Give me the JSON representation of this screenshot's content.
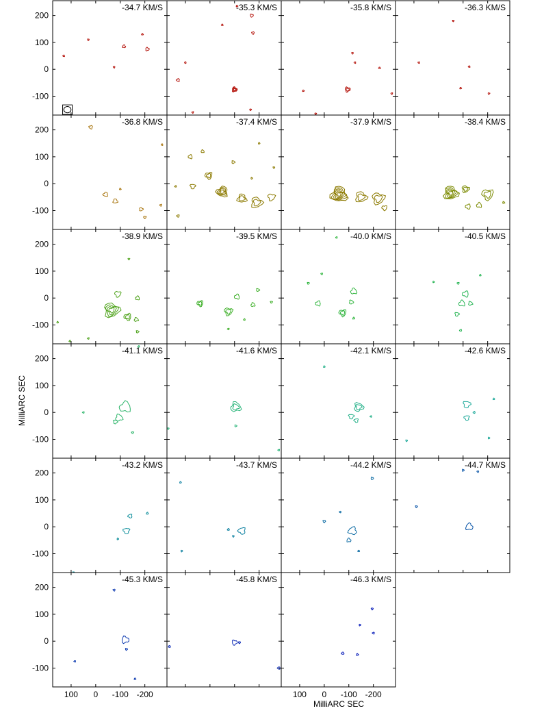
{
  "chart_data": {
    "type": "channel-map-contour",
    "xlabel": "MilliARC SEC",
    "ylabel": "MilliARC SEC",
    "xlim": [
      175,
      -290
    ],
    "ylim": [
      -170,
      255
    ],
    "x_ticks": [
      100,
      0,
      -100,
      -200
    ],
    "x_tick_labels": [
      "100",
      "0",
      "-100",
      "-200"
    ],
    "y_ticks": [
      200,
      100,
      0,
      -100
    ],
    "y_tick_labels": [
      "200",
      "100",
      "0",
      "-100"
    ],
    "layout": {
      "rows": 6,
      "cols": 4
    },
    "grid": false,
    "beam": {
      "x": 115,
      "y": -150,
      "major": 24,
      "minor": 20
    },
    "panels": [
      {
        "label": "-34.7 KM/S",
        "color": "#b5150d",
        "features": [
          {
            "x": -115,
            "y": 85,
            "r": 6,
            "n": 1
          },
          {
            "x": -210,
            "y": 75,
            "r": 7,
            "n": 1
          },
          {
            "x": 30,
            "y": 110,
            "r": 3,
            "n": 1
          },
          {
            "x": -75,
            "y": 8,
            "r": 3,
            "n": 1
          },
          {
            "x": 130,
            "y": 50,
            "r": 2,
            "n": 1
          },
          {
            "x": -190,
            "y": 130,
            "r": 2,
            "n": 1
          }
        ]
      },
      {
        "label": "-35.3 KM/S",
        "color": "#b5150d",
        "features": [
          {
            "x": -100,
            "y": -75,
            "r": 10,
            "n": 3
          },
          {
            "x": -170,
            "y": 200,
            "r": 6,
            "n": 1
          },
          {
            "x": -175,
            "y": 135,
            "r": 5,
            "n": 1
          },
          {
            "x": 130,
            "y": -40,
            "r": 6,
            "n": 1
          },
          {
            "x": -50,
            "y": 165,
            "r": 3,
            "n": 1
          },
          {
            "x": -110,
            "y": 235,
            "r": 3,
            "n": 1
          },
          {
            "x": -165,
            "y": -150,
            "r": 3,
            "n": 1
          },
          {
            "x": 70,
            "y": -160,
            "r": 3,
            "n": 1
          },
          {
            "x": 100,
            "y": 25,
            "r": 2,
            "n": 1
          }
        ]
      },
      {
        "label": "-35.8 KM/S",
        "color": "#b5150d",
        "features": [
          {
            "x": -95,
            "y": -75,
            "r": 10,
            "n": 2
          },
          {
            "x": -115,
            "y": 60,
            "r": 3,
            "n": 1
          },
          {
            "x": -125,
            "y": 25,
            "r": 3,
            "n": 1
          },
          {
            "x": -225,
            "y": 5,
            "r": 2,
            "n": 1
          },
          {
            "x": 85,
            "y": -80,
            "r": 2,
            "n": 1
          },
          {
            "x": 35,
            "y": -165,
            "r": 3,
            "n": 1
          },
          {
            "x": -275,
            "y": -90,
            "r": 2,
            "n": 1
          }
        ]
      },
      {
        "label": "-36.3 KM/S",
        "color": "#b5150d",
        "features": [
          {
            "x": -60,
            "y": 180,
            "r": 3,
            "n": 1
          },
          {
            "x": 80,
            "y": 25,
            "r": 2,
            "n": 1
          },
          {
            "x": -125,
            "y": 10,
            "r": 2,
            "n": 1
          },
          {
            "x": -90,
            "y": -70,
            "r": 3,
            "n": 1
          },
          {
            "x": -205,
            "y": -90,
            "r": 2,
            "n": 1
          }
        ]
      },
      {
        "label": "-36.8 KM/S",
        "color": "#a8740c",
        "features": [
          {
            "x": 20,
            "y": 210,
            "r": 7,
            "n": 1
          },
          {
            "x": -40,
            "y": -40,
            "r": 9,
            "n": 1
          },
          {
            "x": -80,
            "y": -65,
            "r": 9,
            "n": 1
          },
          {
            "x": -185,
            "y": -95,
            "r": 7,
            "n": 1
          },
          {
            "x": -200,
            "y": -125,
            "r": 5,
            "n": 1
          },
          {
            "x": -265,
            "y": -80,
            "r": 4,
            "n": 1
          },
          {
            "x": -270,
            "y": 145,
            "r": 3,
            "n": 1
          },
          {
            "x": -100,
            "y": -20,
            "r": 3,
            "n": 1
          }
        ]
      },
      {
        "label": "-37.4 KM/S",
        "color": "#8c7a00",
        "features": [
          {
            "x": -50,
            "y": -30,
            "r": 22,
            "n": 4
          },
          {
            "x": -130,
            "y": -55,
            "r": 18,
            "n": 2
          },
          {
            "x": -190,
            "y": -70,
            "r": 22,
            "n": 2
          },
          {
            "x": -250,
            "y": -50,
            "r": 14,
            "n": 1
          },
          {
            "x": 5,
            "y": 30,
            "r": 14,
            "n": 2
          },
          {
            "x": 80,
            "y": 100,
            "r": 8,
            "n": 1
          },
          {
            "x": 30,
            "y": 120,
            "r": 6,
            "n": 1
          },
          {
            "x": -95,
            "y": 80,
            "r": 6,
            "n": 1
          },
          {
            "x": 70,
            "y": -10,
            "r": 10,
            "n": 1
          },
          {
            "x": 130,
            "y": -120,
            "r": 5,
            "n": 1
          },
          {
            "x": 140,
            "y": -10,
            "r": 3,
            "n": 1
          },
          {
            "x": -200,
            "y": 150,
            "r": 3,
            "n": 1
          },
          {
            "x": -170,
            "y": 20,
            "r": 3,
            "n": 1
          },
          {
            "x": -260,
            "y": 60,
            "r": 3,
            "n": 1
          }
        ]
      },
      {
        "label": "-37.9 KM/S",
        "color": "#8c7a00",
        "features": [
          {
            "x": -60,
            "y": -40,
            "r": 32,
            "n": 6
          },
          {
            "x": -150,
            "y": -50,
            "r": 22,
            "n": 2
          },
          {
            "x": -220,
            "y": -55,
            "r": 24,
            "n": 2
          },
          {
            "x": -245,
            "y": -90,
            "r": 10,
            "n": 1
          }
        ]
      },
      {
        "label": "-38.4 KM/S",
        "color": "#7b8a00",
        "features": [
          {
            "x": -50,
            "y": -35,
            "r": 28,
            "n": 5
          },
          {
            "x": -110,
            "y": -20,
            "r": 14,
            "n": 2
          },
          {
            "x": -200,
            "y": -40,
            "r": 22,
            "n": 2
          },
          {
            "x": -120,
            "y": -85,
            "r": 10,
            "n": 1
          },
          {
            "x": -165,
            "y": -80,
            "r": 10,
            "n": 1
          },
          {
            "x": -265,
            "y": -70,
            "r": 4,
            "n": 1
          }
        ]
      },
      {
        "label": "-38.9 KM/S",
        "color": "#4fa31c",
        "features": [
          {
            "x": -65,
            "y": -45,
            "r": 30,
            "n": 4
          },
          {
            "x": -90,
            "y": 15,
            "r": 12,
            "n": 1
          },
          {
            "x": -130,
            "y": -70,
            "r": 14,
            "n": 2
          },
          {
            "x": -170,
            "y": 0,
            "r": 8,
            "n": 1
          },
          {
            "x": -165,
            "y": -80,
            "r": 8,
            "n": 1
          },
          {
            "x": -170,
            "y": -125,
            "r": 5,
            "n": 1
          },
          {
            "x": -135,
            "y": 145,
            "r": 3,
            "n": 1
          },
          {
            "x": 30,
            "y": -150,
            "r": 3,
            "n": 1
          },
          {
            "x": 105,
            "y": -160,
            "r": 3,
            "n": 1
          },
          {
            "x": 155,
            "y": -90,
            "r": 3,
            "n": 1
          }
        ]
      },
      {
        "label": "-39.5 KM/S",
        "color": "#3fb02a",
        "features": [
          {
            "x": -75,
            "y": -50,
            "r": 16,
            "n": 2
          },
          {
            "x": 40,
            "y": -20,
            "r": 12,
            "n": 2
          },
          {
            "x": -110,
            "y": 5,
            "r": 10,
            "n": 1
          },
          {
            "x": -175,
            "y": -25,
            "r": 8,
            "n": 1
          },
          {
            "x": -195,
            "y": 30,
            "r": 6,
            "n": 1
          },
          {
            "x": -250,
            "y": -15,
            "r": 4,
            "n": 1
          },
          {
            "x": -75,
            "y": -115,
            "r": 3,
            "n": 1
          },
          {
            "x": -140,
            "y": -80,
            "r": 3,
            "n": 1
          }
        ]
      },
      {
        "label": "-40.0 KM/S",
        "color": "#30b53e",
        "features": [
          {
            "x": -75,
            "y": -55,
            "r": 14,
            "n": 2
          },
          {
            "x": 25,
            "y": -20,
            "r": 10,
            "n": 1
          },
          {
            "x": -120,
            "y": 25,
            "r": 12,
            "n": 1
          },
          {
            "x": -110,
            "y": -15,
            "r": 8,
            "n": 1
          },
          {
            "x": 65,
            "y": 55,
            "r": 4,
            "n": 1
          },
          {
            "x": 10,
            "y": 90,
            "r": 3,
            "n": 1
          },
          {
            "x": -50,
            "y": 225,
            "r": 3,
            "n": 1
          },
          {
            "x": -120,
            "y": -75,
            "r": 4,
            "n": 1
          }
        ]
      },
      {
        "label": "-40.5 KM/S",
        "color": "#28b555",
        "features": [
          {
            "x": -110,
            "y": 15,
            "r": 12,
            "n": 1
          },
          {
            "x": -95,
            "y": -20,
            "r": 12,
            "n": 1
          },
          {
            "x": -130,
            "y": -20,
            "r": 8,
            "n": 1
          },
          {
            "x": -75,
            "y": -60,
            "r": 8,
            "n": 1
          },
          {
            "x": -80,
            "y": 55,
            "r": 4,
            "n": 1
          },
          {
            "x": -90,
            "y": -120,
            "r": 4,
            "n": 1
          },
          {
            "x": -170,
            "y": 85,
            "r": 3,
            "n": 1
          },
          {
            "x": 20,
            "y": 60,
            "r": 2,
            "n": 1
          }
        ]
      },
      {
        "label": "-41.1 KM/S",
        "color": "#2cb56a",
        "features": [
          {
            "x": -120,
            "y": 20,
            "r": 22,
            "n": 1
          },
          {
            "x": -95,
            "y": -20,
            "r": 14,
            "n": 1
          },
          {
            "x": -80,
            "y": -35,
            "r": 8,
            "n": 1
          },
          {
            "x": -150,
            "y": -75,
            "r": 4,
            "n": 1
          },
          {
            "x": 50,
            "y": 0,
            "r": 3,
            "n": 1
          },
          {
            "x": -175,
            "y": 245,
            "r": 3,
            "n": 1
          }
        ]
      },
      {
        "label": "-41.6 KM/S",
        "color": "#2ab57a",
        "features": [
          {
            "x": -105,
            "y": 20,
            "r": 20,
            "n": 2
          },
          {
            "x": -105,
            "y": -50,
            "r": 4,
            "n": 1
          },
          {
            "x": 170,
            "y": -60,
            "r": 3,
            "n": 1
          },
          {
            "x": -280,
            "y": -140,
            "r": 3,
            "n": 1
          }
        ]
      },
      {
        "label": "-42.1 KM/S",
        "color": "#23b088",
        "features": [
          {
            "x": -140,
            "y": 20,
            "r": 18,
            "n": 2
          },
          {
            "x": -110,
            "y": -15,
            "r": 10,
            "n": 1
          },
          {
            "x": -130,
            "y": -30,
            "r": 8,
            "n": 1
          },
          {
            "x": -190,
            "y": -15,
            "r": 3,
            "n": 1
          },
          {
            "x": 0,
            "y": 170,
            "r": 3,
            "n": 1
          }
        ]
      },
      {
        "label": "-42.6 KM/S",
        "color": "#1aa898",
        "features": [
          {
            "x": -115,
            "y": 30,
            "r": 14,
            "n": 1
          },
          {
            "x": -115,
            "y": -20,
            "r": 10,
            "n": 1
          },
          {
            "x": -145,
            "y": 0,
            "r": 4,
            "n": 1
          },
          {
            "x": -225,
            "y": 50,
            "r": 3,
            "n": 1
          },
          {
            "x": -205,
            "y": -95,
            "r": 3,
            "n": 1
          },
          {
            "x": 130,
            "y": -105,
            "r": 3,
            "n": 1
          }
        ]
      },
      {
        "label": "-43.2 KM/S",
        "color": "#0f8f9c",
        "features": [
          {
            "x": -125,
            "y": -15,
            "r": 12,
            "n": 1
          },
          {
            "x": -140,
            "y": 40,
            "r": 8,
            "n": 1
          },
          {
            "x": -210,
            "y": 50,
            "r": 4,
            "n": 1
          },
          {
            "x": -90,
            "y": -45,
            "r": 3,
            "n": 1
          },
          {
            "x": 90,
            "y": -170,
            "r": 3,
            "n": 1
          }
        ]
      },
      {
        "label": "-43.7 KM/S",
        "color": "#0c80a0",
        "features": [
          {
            "x": -130,
            "y": -15,
            "r": 14,
            "n": 1
          },
          {
            "x": -75,
            "y": -10,
            "r": 4,
            "n": 1
          },
          {
            "x": 120,
            "y": 165,
            "r": 3,
            "n": 1
          },
          {
            "x": 115,
            "y": -90,
            "r": 3,
            "n": 1
          },
          {
            "x": -95,
            "y": -35,
            "r": 2,
            "n": 1
          }
        ]
      },
      {
        "label": "-44.2 KM/S",
        "color": "#0a6aa3",
        "features": [
          {
            "x": -115,
            "y": -15,
            "r": 16,
            "n": 1
          },
          {
            "x": -100,
            "y": -50,
            "r": 8,
            "n": 1
          },
          {
            "x": -195,
            "y": 180,
            "r": 5,
            "n": 1
          },
          {
            "x": 0,
            "y": 20,
            "r": 5,
            "n": 1
          },
          {
            "x": -65,
            "y": 55,
            "r": 3,
            "n": 1
          },
          {
            "x": -140,
            "y": -90,
            "r": 3,
            "n": 1
          }
        ]
      },
      {
        "label": "-44.7 KM/S",
        "color": "#0a55a8",
        "features": [
          {
            "x": -125,
            "y": 0,
            "r": 14,
            "n": 1
          },
          {
            "x": -100,
            "y": 210,
            "r": 4,
            "n": 1
          },
          {
            "x": 90,
            "y": 75,
            "r": 4,
            "n": 1
          },
          {
            "x": -160,
            "y": 205,
            "r": 3,
            "n": 1
          }
        ]
      },
      {
        "label": "-45.3 KM/S",
        "color": "#0a38b0",
        "features": [
          {
            "x": -120,
            "y": 5,
            "r": 14,
            "n": 1
          },
          {
            "x": -125,
            "y": -30,
            "r": 4,
            "n": 1
          },
          {
            "x": -75,
            "y": 190,
            "r": 4,
            "n": 1
          },
          {
            "x": 85,
            "y": -75,
            "r": 3,
            "n": 1
          },
          {
            "x": -160,
            "y": -140,
            "r": 3,
            "n": 1
          }
        ]
      },
      {
        "label": "-45.8 KM/S",
        "color": "#0a28b5",
        "features": [
          {
            "x": -100,
            "y": -5,
            "r": 10,
            "n": 1
          },
          {
            "x": -120,
            "y": -5,
            "r": 4,
            "n": 1
          },
          {
            "x": -280,
            "y": -100,
            "r": 5,
            "n": 1
          },
          {
            "x": 165,
            "y": -20,
            "r": 4,
            "n": 1
          }
        ]
      },
      {
        "label": "-46.3 KM/S",
        "color": "#0a1eba",
        "features": [
          {
            "x": -195,
            "y": 120,
            "r": 4,
            "n": 1
          },
          {
            "x": -200,
            "y": 30,
            "r": 4,
            "n": 1
          },
          {
            "x": -75,
            "y": -45,
            "r": 5,
            "n": 1
          },
          {
            "x": -135,
            "y": -50,
            "r": 4,
            "n": 1
          },
          {
            "x": -145,
            "y": 60,
            "r": 2,
            "n": 1
          }
        ]
      }
    ]
  }
}
